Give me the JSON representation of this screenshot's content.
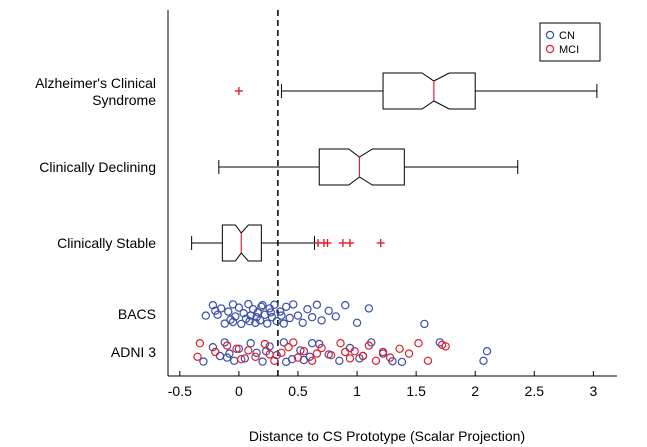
{
  "chart_data": {
    "type": "box+scatter",
    "xlabel": "Distance to CS Prototype (Scalar Projection)",
    "xlim": [
      -0.6,
      3.2
    ],
    "xticks": [
      -0.5,
      0,
      0.5,
      1,
      1.5,
      2,
      2.5,
      3
    ],
    "xtick_labels": [
      "-0.5",
      "0",
      "0.5",
      "1",
      "1.5",
      "2",
      "2.5",
      "3"
    ],
    "threshold_line": 0.33,
    "colors": {
      "CN": "#3a4ea8",
      "MCI": "#e0202a",
      "median": "#e0202a",
      "box": "#000000",
      "outlier": "#e0202a"
    },
    "legend": {
      "placement": "top-right",
      "entries": [
        "CN",
        "MCI"
      ]
    },
    "boxes": [
      {
        "label_lines": [
          "Alzheimer's Clinical",
          "Syndrome"
        ],
        "q1": 1.22,
        "median": 1.65,
        "q3": 2.0,
        "notch_low": 1.55,
        "notch_high": 1.78,
        "whisker_low": 0.36,
        "whisker_high": 3.03,
        "outliers": [
          0.0
        ]
      },
      {
        "label_lines": [
          "Clinically Declining"
        ],
        "q1": 0.68,
        "median": 1.02,
        "q3": 1.4,
        "notch_low": 0.93,
        "notch_high": 1.13,
        "whisker_low": -0.17,
        "whisker_high": 2.36,
        "outliers": []
      },
      {
        "label_lines": [
          "Clinically Stable"
        ],
        "q1": -0.14,
        "median": 0.02,
        "q3": 0.19,
        "notch_low": -0.03,
        "notch_high": 0.08,
        "whisker_low": -0.4,
        "whisker_high": 0.64,
        "outliers": [
          0.67,
          0.72,
          0.75,
          0.88,
          0.94,
          1.2
        ]
      }
    ],
    "scatter_groups": [
      {
        "label": "BACS",
        "CN": [
          [
            -0.28,
            0.1
          ],
          [
            -0.22,
            -0.55
          ],
          [
            -0.18,
            0.05
          ],
          [
            -0.15,
            -0.35
          ],
          [
            -0.12,
            0.6
          ],
          [
            -0.09,
            -0.15
          ],
          [
            -0.07,
            0.35
          ],
          [
            -0.05,
            -0.6
          ],
          [
            -0.03,
            0.15
          ],
          [
            0.0,
            -0.4
          ],
          [
            0.02,
            0.62
          ],
          [
            0.04,
            -0.05
          ],
          [
            0.06,
            0.3
          ],
          [
            0.08,
            -0.62
          ],
          [
            0.1,
            0.1
          ],
          [
            0.12,
            -0.3
          ],
          [
            0.14,
            0.55
          ],
          [
            0.16,
            -0.1
          ],
          [
            0.18,
            0.4
          ],
          [
            0.2,
            -0.55
          ],
          [
            0.22,
            0.05
          ],
          [
            0.24,
            0.6
          ],
          [
            0.26,
            -0.35
          ],
          [
            0.28,
            0.2
          ],
          [
            0.3,
            -0.58
          ],
          [
            0.32,
            0.45
          ],
          [
            0.35,
            -0.15
          ],
          [
            0.38,
            0.6
          ],
          [
            0.4,
            -0.45
          ],
          [
            0.43,
            0.25
          ],
          [
            0.46,
            -0.6
          ],
          [
            0.5,
            0.1
          ],
          [
            0.54,
            0.55
          ],
          [
            0.58,
            -0.3
          ],
          [
            0.62,
            0.2
          ],
          [
            0.66,
            -0.58
          ],
          [
            0.7,
            0.4
          ],
          [
            0.76,
            -0.2
          ],
          [
            0.82,
            0.15
          ],
          [
            0.9,
            -0.55
          ],
          [
            1.0,
            0.55
          ],
          [
            1.1,
            -0.35
          ],
          [
            1.57,
            0.62
          ],
          [
            -0.05,
            0.5
          ],
          [
            0.09,
            0.45
          ],
          [
            0.19,
            -0.45
          ],
          [
            0.27,
            -0.1
          ],
          [
            0.36,
            0.1
          ],
          [
            0.15,
            0.2
          ],
          [
            -0.2,
            -0.2
          ]
        ],
        "MCI": []
      },
      {
        "label": "ADNI 3",
        "CN": [
          [
            -0.3,
            0.6
          ],
          [
            -0.22,
            -0.3
          ],
          [
            -0.16,
            0.25
          ],
          [
            -0.12,
            -0.6
          ],
          [
            -0.08,
            0.1
          ],
          [
            -0.04,
            0.55
          ],
          [
            0.0,
            -0.2
          ],
          [
            0.05,
            0.4
          ],
          [
            0.1,
            -0.55
          ],
          [
            0.15,
            0.05
          ],
          [
            0.2,
            0.6
          ],
          [
            0.26,
            -0.35
          ],
          [
            0.32,
            0.2
          ],
          [
            0.38,
            -0.6
          ],
          [
            0.45,
            0.45
          ],
          [
            0.52,
            -0.1
          ],
          [
            0.6,
            0.3
          ],
          [
            0.68,
            -0.5
          ],
          [
            0.76,
            0.15
          ],
          [
            0.85,
            0.55
          ],
          [
            0.94,
            -0.25
          ],
          [
            1.02,
            0.4
          ],
          [
            1.12,
            -0.6
          ],
          [
            1.22,
            0.1
          ],
          [
            1.3,
            0.58
          ],
          [
            1.38,
            0.62
          ],
          [
            1.7,
            -0.6
          ],
          [
            2.07,
            0.55
          ],
          [
            2.1,
            -0.05
          ],
          [
            0.62,
            -0.55
          ],
          [
            0.4,
            0.62
          ],
          [
            1.05,
            0.25
          ],
          [
            -0.1,
            0.35
          ],
          [
            0.23,
            -0.05
          ],
          [
            0.55,
            0.5
          ]
        ],
        "MCI": [
          [
            -0.35,
            0.3
          ],
          [
            -0.33,
            -0.55
          ],
          [
            -0.2,
            0.0
          ],
          [
            -0.1,
            -0.4
          ],
          [
            0.02,
            0.45
          ],
          [
            0.08,
            -0.1
          ],
          [
            0.14,
            0.3
          ],
          [
            0.22,
            -0.5
          ],
          [
            0.3,
            0.55
          ],
          [
            0.36,
            0.05
          ],
          [
            0.42,
            -0.3
          ],
          [
            0.5,
            0.35
          ],
          [
            0.55,
            -0.05
          ],
          [
            0.62,
            0.55
          ],
          [
            0.7,
            -0.25
          ],
          [
            0.78,
            0.2
          ],
          [
            0.86,
            -0.55
          ],
          [
            0.94,
            0.4
          ],
          [
            0.98,
            -0.05
          ],
          [
            1.05,
            0.25
          ],
          [
            1.1,
            -0.4
          ],
          [
            1.16,
            0.55
          ],
          [
            1.22,
            0.0
          ],
          [
            1.28,
            0.35
          ],
          [
            1.36,
            -0.2
          ],
          [
            1.44,
            0.1
          ],
          [
            1.52,
            -0.55
          ],
          [
            1.6,
            0.55
          ],
          [
            1.72,
            -0.45
          ],
          [
            1.75,
            -0.35
          ],
          [
            0.26,
            0.15
          ],
          [
            0.66,
            0.1
          ],
          [
            -0.02,
            -0.2
          ],
          [
            0.46,
            -0.6
          ],
          [
            0.9,
            0.0
          ]
        ]
      }
    ]
  }
}
